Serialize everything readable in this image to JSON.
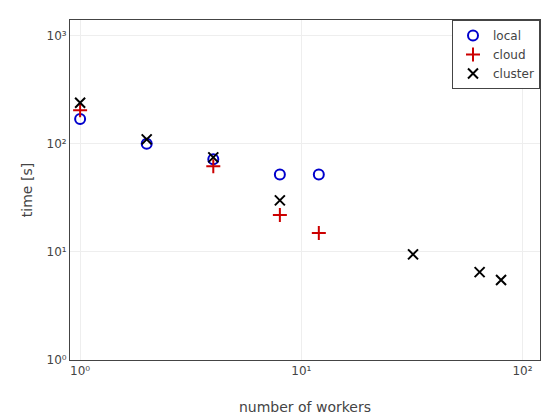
{
  "chart_data": {
    "type": "scatter",
    "xlabel": "number of workers",
    "ylabel": "time [s]",
    "series": [
      {
        "name": "local",
        "color": "#0000cc",
        "marker": "circle-open",
        "x": [
          1,
          2,
          4,
          8,
          12
        ],
        "values": [
          170,
          100,
          72,
          52,
          52
        ]
      },
      {
        "name": "cloud",
        "color": "#cc0000",
        "marker": "plus",
        "x": [
          1,
          4,
          8,
          12
        ],
        "values": [
          205,
          62,
          22,
          15
        ]
      },
      {
        "name": "cluster",
        "color": "#000000",
        "marker": "x",
        "x": [
          1,
          2,
          4,
          8,
          32,
          64,
          80
        ],
        "values": [
          240,
          110,
          75,
          30,
          9.5,
          6.5,
          5.5
        ]
      }
    ],
    "xlim": [
      0.9,
      120
    ],
    "ylim": [
      1.0,
      1400
    ],
    "xticks": [
      {
        "value": 1,
        "label": "10⁰"
      },
      {
        "value": 10,
        "label": "10¹"
      },
      {
        "value": 100,
        "label": "10²"
      }
    ],
    "yticks": [
      {
        "value": 1,
        "label": "10⁰"
      },
      {
        "value": 10,
        "label": "10¹"
      },
      {
        "value": 100,
        "label": "10²"
      },
      {
        "value": 1000,
        "label": "10³"
      }
    ],
    "log": true,
    "grid": true,
    "legend": "upper right"
  }
}
